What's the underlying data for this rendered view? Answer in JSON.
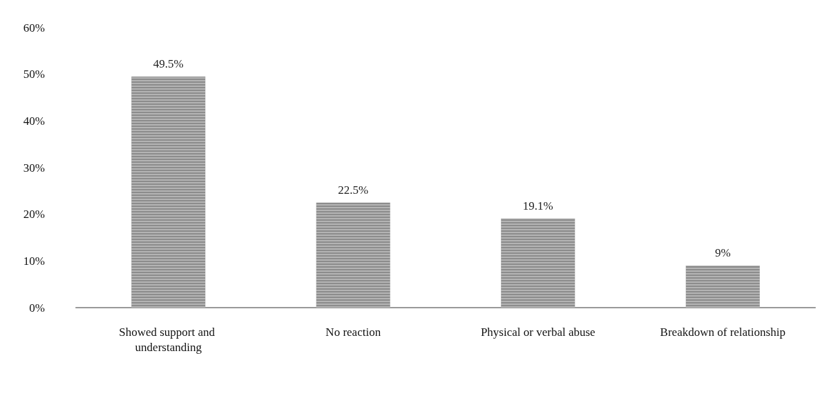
{
  "chart_data": {
    "type": "bar",
    "categories": [
      "Showed support and understanding",
      "No reaction",
      "Physical or verbal abuse",
      "Breakdown of relationship"
    ],
    "values": [
      49.5,
      22.5,
      19.1,
      9
    ],
    "value_labels": [
      "49.5%",
      "22.5%",
      "19.1%",
      "9%"
    ],
    "color": "#8c8c8c",
    "ylim": [
      0,
      60
    ],
    "yticks": [
      {
        "value": 0,
        "label": "0%"
      },
      {
        "value": 10,
        "label": "10%"
      },
      {
        "value": 20,
        "label": "20%"
      },
      {
        "value": 30,
        "label": "30%"
      },
      {
        "value": 40,
        "label": "40%"
      },
      {
        "value": 50,
        "label": "50%"
      },
      {
        "value": 60,
        "label": "60%"
      }
    ],
    "grid": false
  }
}
